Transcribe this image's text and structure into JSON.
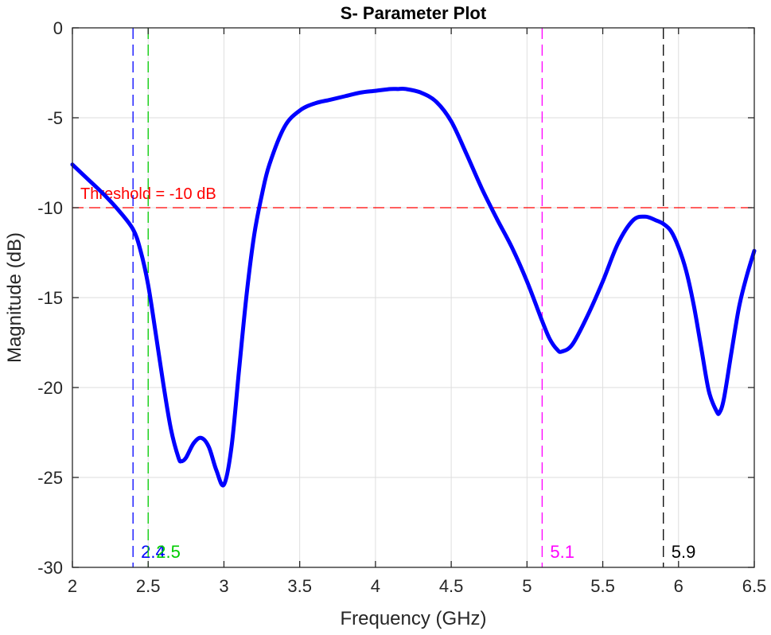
{
  "chart_data": {
    "type": "line",
    "title": "S- Parameter Plot",
    "xlabel": "Frequency (GHz)",
    "ylabel": "Magnitude (dB)",
    "xlim": [
      2,
      6.5
    ],
    "ylim": [
      -30,
      0
    ],
    "xticks": [
      "2",
      "2.5",
      "3",
      "3.5",
      "4",
      "4.5",
      "5",
      "5.5",
      "6",
      "6.5"
    ],
    "yticks": [
      "0",
      "-5",
      "-10",
      "-15",
      "-20",
      "-25",
      "-30"
    ],
    "grid": true,
    "series": [
      {
        "color": "#0000ff",
        "x": [
          2.0,
          2.1,
          2.2,
          2.3,
          2.4,
          2.45,
          2.5,
          2.55,
          2.6,
          2.65,
          2.7,
          2.72,
          2.75,
          2.8,
          2.85,
          2.9,
          2.95,
          3.0,
          3.05,
          3.1,
          3.15,
          3.2,
          3.25,
          3.3,
          3.4,
          3.5,
          3.6,
          3.7,
          3.8,
          3.9,
          4.0,
          4.1,
          4.15,
          4.2,
          4.3,
          4.4,
          4.5,
          4.6,
          4.7,
          4.8,
          4.9,
          5.0,
          5.1,
          5.15,
          5.2,
          5.23,
          5.3,
          5.4,
          5.5,
          5.6,
          5.7,
          5.78,
          5.85,
          5.9,
          5.95,
          6.0,
          6.05,
          6.1,
          6.15,
          6.2,
          6.25,
          6.27,
          6.3,
          6.35,
          6.4,
          6.45,
          6.5
        ],
        "y": [
          -7.6,
          -8.4,
          -9.2,
          -10.1,
          -11.2,
          -12.4,
          -14.3,
          -17.0,
          -19.8,
          -22.3,
          -23.9,
          -24.1,
          -23.9,
          -23.1,
          -22.8,
          -23.3,
          -24.6,
          -25.4,
          -23.3,
          -19.0,
          -14.8,
          -11.5,
          -9.3,
          -7.6,
          -5.5,
          -4.6,
          -4.2,
          -4.0,
          -3.8,
          -3.6,
          -3.5,
          -3.4,
          -3.4,
          -3.4,
          -3.6,
          -4.1,
          -5.2,
          -7.0,
          -8.9,
          -10.6,
          -12.2,
          -14.1,
          -16.3,
          -17.3,
          -17.9,
          -18.0,
          -17.6,
          -16.0,
          -14.1,
          -12.0,
          -10.7,
          -10.5,
          -10.7,
          -10.9,
          -11.3,
          -12.2,
          -13.5,
          -15.4,
          -17.8,
          -20.2,
          -21.3,
          -21.4,
          -20.6,
          -18.0,
          -15.5,
          -13.8,
          -12.4
        ]
      }
    ],
    "threshold": {
      "y": -10,
      "label": "Threshold = -10 dB",
      "color": "#ff0000"
    },
    "markers": [
      {
        "x": 2.4,
        "label": "2.4",
        "color": "#0000ff"
      },
      {
        "x": 2.5,
        "label": "2.5",
        "color": "#00cc00"
      },
      {
        "x": 5.1,
        "label": "5.1",
        "color": "#ff00ff"
      },
      {
        "x": 5.9,
        "label": "5.9",
        "color": "#000000"
      }
    ]
  }
}
